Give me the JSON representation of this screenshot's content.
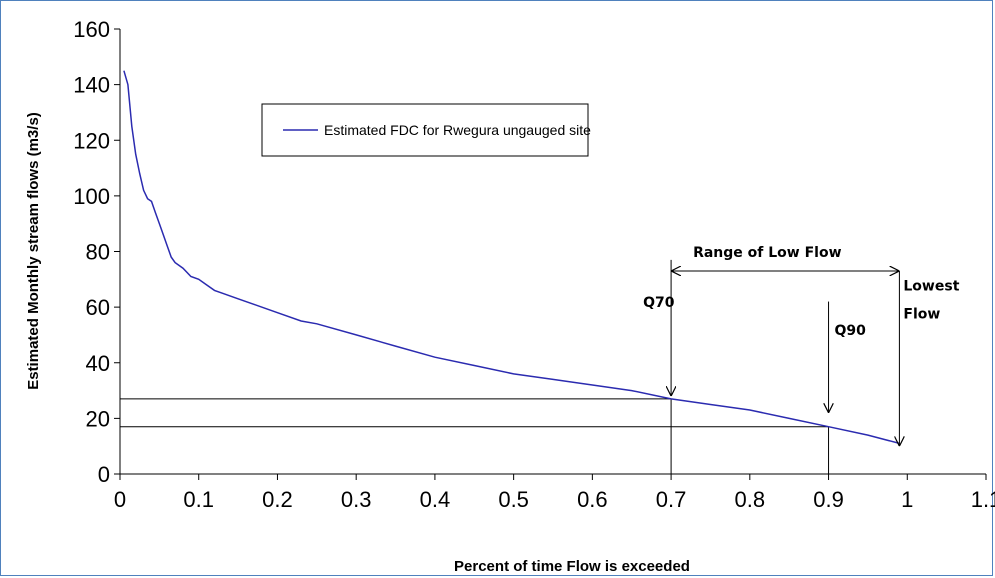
{
  "chart_data": {
    "type": "line",
    "title": "",
    "xlabel": "Percent of time Flow is exceeded",
    "ylabel": "Estimated Monthly stream flows (m3/s)",
    "xlim": [
      0,
      1.1
    ],
    "ylim": [
      0,
      160
    ],
    "x_ticks": [
      "0",
      "0.1",
      "0.2",
      "0.3",
      "0.4",
      "0.5",
      "0.6",
      "0.7",
      "0.8",
      "0.9",
      "1",
      "1.1"
    ],
    "y_ticks": [
      "0",
      "20",
      "40",
      "60",
      "80",
      "100",
      "120",
      "140",
      "160"
    ],
    "grid": false,
    "legend_position": "top-center",
    "series": [
      {
        "name": "Estimated FDC for Rwegura ungauged site",
        "color": "#2b2bb0",
        "x": [
          0.005,
          0.01,
          0.015,
          0.02,
          0.025,
          0.03,
          0.035,
          0.04,
          0.045,
          0.05,
          0.055,
          0.06,
          0.065,
          0.07,
          0.075,
          0.08,
          0.09,
          0.1,
          0.11,
          0.12,
          0.13,
          0.15,
          0.17,
          0.2,
          0.23,
          0.25,
          0.3,
          0.35,
          0.4,
          0.45,
          0.5,
          0.55,
          0.6,
          0.65,
          0.7,
          0.75,
          0.8,
          0.85,
          0.9,
          0.95,
          0.99
        ],
        "values": [
          145,
          140,
          125,
          115,
          108,
          102,
          99,
          98,
          94,
          90,
          86,
          82,
          78,
          76,
          75,
          74,
          71,
          70,
          68,
          66,
          65,
          63,
          61,
          58,
          55,
          54,
          50,
          46,
          42,
          39,
          36,
          34,
          32,
          30,
          27,
          25,
          23,
          20,
          17,
          14,
          11
        ]
      }
    ],
    "reference_lines": {
      "horizontal_y": [
        27,
        17
      ],
      "vertical_x": [
        0.7,
        0.9
      ]
    },
    "annotations": {
      "range_label": "Range of Low Flow",
      "q70_label": "Q70",
      "q90_label": "Q90",
      "lowest_flow_label": [
        "Lowest",
        "Flow"
      ]
    }
  }
}
